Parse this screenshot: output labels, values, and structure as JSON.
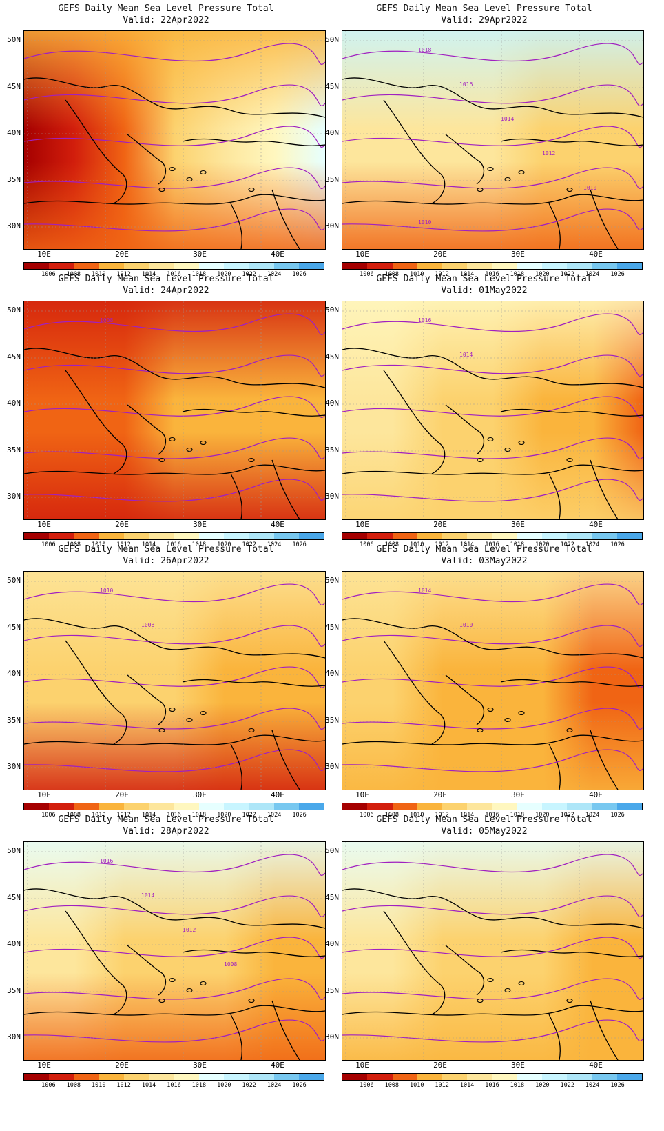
{
  "colors": {
    "scale": [
      "#a50000",
      "#d21e0c",
      "#f06414",
      "#fab43c",
      "#fcd26e",
      "#fde69c",
      "#fff7bf",
      "#e6ffff",
      "#c8f5ff",
      "#aee6f8",
      "#78c8f0",
      "#4aa8ea",
      "#2b7ee0",
      "#1e5ed2"
    ],
    "contour": "#a020c0",
    "coast": "#000000",
    "grid": "#9a9a9a"
  },
  "colorbar": {
    "labels": [
      "1006",
      "1008",
      "1010",
      "1012",
      "1014",
      "1016",
      "1018",
      "1020",
      "1022",
      "1024",
      "1026"
    ]
  },
  "axes": {
    "lat_labels": [
      "50N",
      "45N",
      "40N",
      "35N",
      "30N"
    ],
    "lon_labels": [
      "10E",
      "20E",
      "30E",
      "40E"
    ]
  },
  "panels": [
    {
      "title": "GEFS Daily Mean Sea Level Pressure Total",
      "valid": "Valid: 22Apr2022",
      "contour_labels": [],
      "field": {
        "west": 0,
        "east": 7,
        "north": 3,
        "south": 2
      }
    },
    {
      "title": "GEFS Daily Mean Sea Level Pressure Total",
      "valid": "Valid: 29Apr2022",
      "contour_labels": [
        "1018",
        "1016",
        "1014",
        "1012",
        "1010",
        "1010"
      ],
      "field": {
        "west": 5,
        "east": 4,
        "north": 8,
        "south": 2
      }
    },
    {
      "title": "GEFS Daily Mean Sea Level Pressure Total",
      "valid": "Valid: 24Apr2022",
      "contour_labels": [
        "1008"
      ],
      "field": {
        "west": 2,
        "east": 3,
        "north": 1,
        "south": 1
      }
    },
    {
      "title": "GEFS Daily Mean Sea Level Pressure Total",
      "valid": "Valid: 01May2022",
      "contour_labels": [
        "1016",
        "1014"
      ],
      "field": {
        "west": 5,
        "east": 2,
        "north": 6,
        "south": 4
      }
    },
    {
      "title": "GEFS Daily Mean Sea Level Pressure Total",
      "valid": "Valid: 26Apr2022",
      "contour_labels": [
        "1010",
        "1008"
      ],
      "field": {
        "west": 4,
        "east": 3,
        "north": 5,
        "south": 1
      }
    },
    {
      "title": "GEFS Daily Mean Sea Level Pressure Total",
      "valid": "Valid: 03May2022",
      "contour_labels": [
        "1014",
        "1010"
      ],
      "field": {
        "west": 4,
        "east": 2,
        "north": 5,
        "south": 3
      }
    },
    {
      "title": "GEFS Daily Mean Sea Level Pressure Total",
      "valid": "Valid: 28Apr2022",
      "contour_labels": [
        "1016",
        "1014",
        "1012",
        "1008"
      ],
      "field": {
        "west": 5,
        "east": 3,
        "north": 7,
        "south": 2
      }
    },
    {
      "title": "GEFS Daily Mean Sea Level Pressure Total",
      "valid": "Valid: 05May2022",
      "contour_labels": [],
      "field": {
        "west": 5,
        "east": 3,
        "north": 7,
        "south": 3
      }
    }
  ]
}
